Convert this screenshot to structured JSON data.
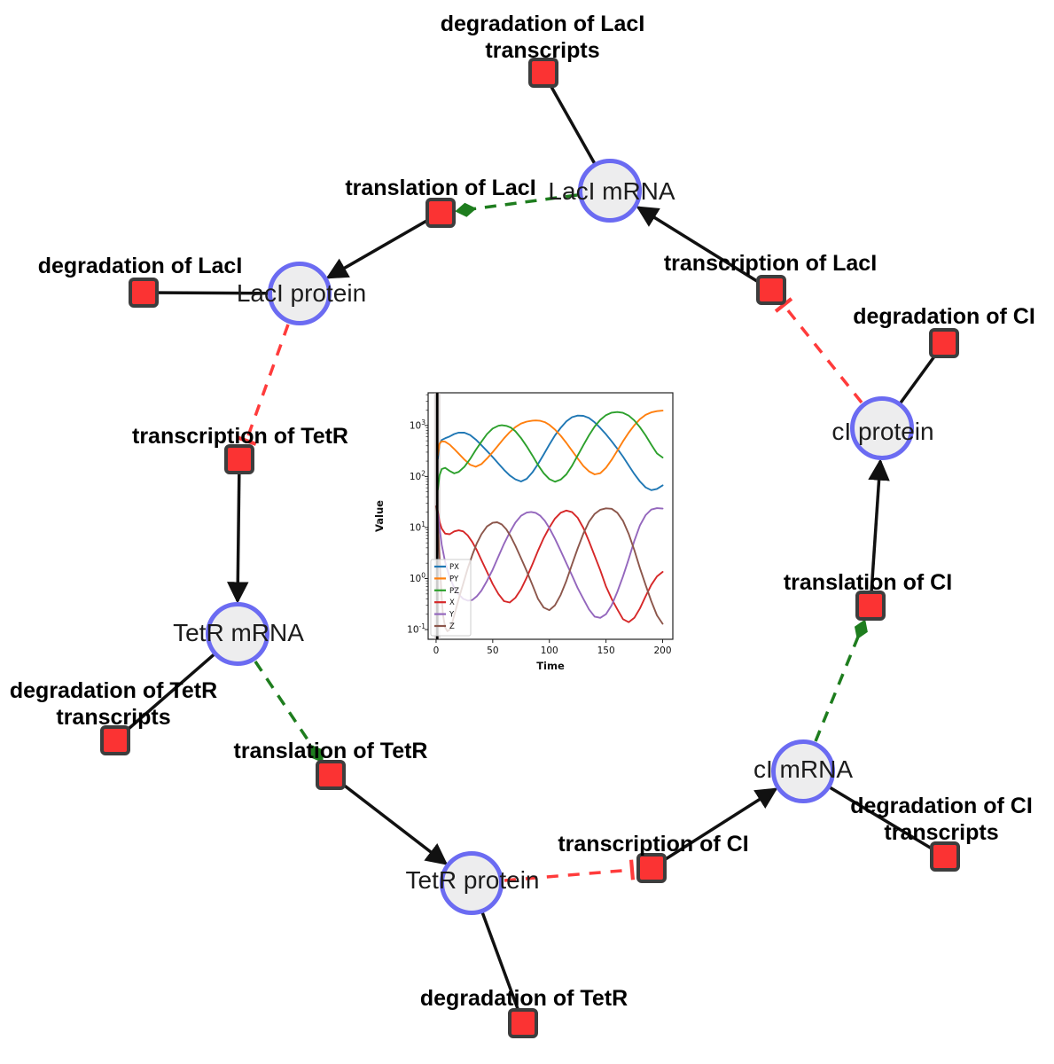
{
  "network": {
    "species": [
      {
        "label": "LacI mRNA"
      },
      {
        "label": "LacI protein"
      },
      {
        "label": "cI protein"
      },
      {
        "label": "TetR mRNA"
      },
      {
        "label": "cI mRNA"
      },
      {
        "label": "TetR protein"
      }
    ],
    "reactions": [
      {
        "lines": [
          "degradation of LacI",
          "transcripts"
        ]
      },
      {
        "lines": [
          "translation of LacI"
        ]
      },
      {
        "lines": [
          "degradation of LacI"
        ]
      },
      {
        "lines": [
          "transcription of LacI"
        ]
      },
      {
        "lines": [
          "degradation of CI"
        ]
      },
      {
        "lines": [
          "transcription of TetR"
        ]
      },
      {
        "lines": [
          "translation of CI"
        ]
      },
      {
        "lines": [
          "degradation of TetR",
          "transcripts"
        ]
      },
      {
        "lines": [
          "translation of TetR"
        ]
      },
      {
        "lines": [
          "transcription of CI"
        ]
      },
      {
        "lines": [
          "degradation of CI",
          "transcripts"
        ]
      },
      {
        "lines": [
          "degradation of TetR"
        ]
      }
    ],
    "colors": {
      "species_fill": "#ededee",
      "species_border": "#6b6bf2",
      "reaction_fill": "#fb3333",
      "reaction_border": "#3d3d3d",
      "production_edge": "#111111",
      "modifier_edge": "#1e7d1e",
      "inhibition_edge": "#ff3b3b"
    }
  },
  "chart_data": {
    "type": "line",
    "title": "",
    "xlabel": "Time",
    "ylabel": "Value",
    "x_axis": {
      "min": -7,
      "max": 209,
      "ticks": [
        0,
        50,
        100,
        150,
        200
      ]
    },
    "y_axis": {
      "scale": "log",
      "min_exp": -1.19,
      "max_exp": 3.64,
      "tick_exponents": [
        -1,
        0,
        1,
        2,
        3
      ]
    },
    "grid": false,
    "legend_position": "lower left",
    "event_line_x": 1,
    "series": [
      {
        "name": "PX",
        "color": "#1f77b4",
        "points": [
          [
            1.5,
            220
          ],
          [
            3,
            430
          ],
          [
            5,
            520
          ],
          [
            8,
            560
          ],
          [
            12,
            610
          ],
          [
            16,
            680
          ],
          [
            20,
            725
          ],
          [
            25,
            720
          ],
          [
            30,
            650
          ],
          [
            35,
            530
          ],
          [
            40,
            410
          ],
          [
            45,
            315
          ],
          [
            50,
            240
          ],
          [
            55,
            180
          ],
          [
            60,
            135
          ],
          [
            65,
            105
          ],
          [
            70,
            88
          ],
          [
            75,
            80
          ],
          [
            80,
            90
          ],
          [
            85,
            120
          ],
          [
            90,
            175
          ],
          [
            95,
            270
          ],
          [
            100,
            420
          ],
          [
            105,
            640
          ],
          [
            110,
            900
          ],
          [
            115,
            1200
          ],
          [
            120,
            1450
          ],
          [
            125,
            1560
          ],
          [
            130,
            1540
          ],
          [
            135,
            1400
          ],
          [
            140,
            1150
          ],
          [
            145,
            890
          ],
          [
            150,
            670
          ],
          [
            155,
            490
          ],
          [
            160,
            350
          ],
          [
            165,
            245
          ],
          [
            170,
            165
          ],
          [
            175,
            112
          ],
          [
            180,
            80
          ],
          [
            185,
            61
          ],
          [
            190,
            54
          ],
          [
            195,
            57
          ],
          [
            200,
            67
          ]
        ]
      },
      {
        "name": "PY",
        "color": "#ff7f0e",
        "points": [
          [
            1.5,
            260
          ],
          [
            3,
            440
          ],
          [
            5,
            490
          ],
          [
            8,
            480
          ],
          [
            12,
            420
          ],
          [
            16,
            345
          ],
          [
            20,
            280
          ],
          [
            25,
            215
          ],
          [
            30,
            170
          ],
          [
            35,
            155
          ],
          [
            40,
            175
          ],
          [
            45,
            225
          ],
          [
            50,
            300
          ],
          [
            55,
            410
          ],
          [
            60,
            560
          ],
          [
            65,
            740
          ],
          [
            70,
            930
          ],
          [
            75,
            1090
          ],
          [
            80,
            1190
          ],
          [
            85,
            1245
          ],
          [
            88,
            1255
          ],
          [
            92,
            1235
          ],
          [
            96,
            1160
          ],
          [
            100,
            1030
          ],
          [
            105,
            830
          ],
          [
            110,
            630
          ],
          [
            115,
            455
          ],
          [
            120,
            320
          ],
          [
            125,
            225
          ],
          [
            130,
            160
          ],
          [
            135,
            126
          ],
          [
            140,
            110
          ],
          [
            145,
            116
          ],
          [
            150,
            148
          ],
          [
            155,
            212
          ],
          [
            160,
            320
          ],
          [
            165,
            490
          ],
          [
            170,
            720
          ],
          [
            175,
            1010
          ],
          [
            180,
            1330
          ],
          [
            185,
            1610
          ],
          [
            190,
            1800
          ],
          [
            195,
            1910
          ],
          [
            200,
            1950
          ]
        ]
      },
      {
        "name": "PZ",
        "color": "#2ca02c",
        "points": [
          [
            1.5,
            55
          ],
          [
            3,
            105
          ],
          [
            5,
            140
          ],
          [
            8,
            148
          ],
          [
            12,
            128
          ],
          [
            16,
            115
          ],
          [
            20,
            123
          ],
          [
            25,
            155
          ],
          [
            30,
            220
          ],
          [
            35,
            330
          ],
          [
            40,
            480
          ],
          [
            45,
            680
          ],
          [
            50,
            870
          ],
          [
            55,
            985
          ],
          [
            58,
            1010
          ],
          [
            62,
            980
          ],
          [
            66,
            905
          ],
          [
            70,
            770
          ],
          [
            75,
            565
          ],
          [
            80,
            390
          ],
          [
            85,
            258
          ],
          [
            90,
            168
          ],
          [
            95,
            116
          ],
          [
            100,
            89
          ],
          [
            105,
            79
          ],
          [
            110,
            87
          ],
          [
            115,
            110
          ],
          [
            120,
            162
          ],
          [
            125,
            258
          ],
          [
            130,
            410
          ],
          [
            135,
            640
          ],
          [
            140,
            950
          ],
          [
            145,
            1290
          ],
          [
            150,
            1590
          ],
          [
            155,
            1780
          ],
          [
            160,
            1830
          ],
          [
            165,
            1765
          ],
          [
            170,
            1560
          ],
          [
            175,
            1255
          ],
          [
            180,
            925
          ],
          [
            185,
            640
          ],
          [
            190,
            420
          ],
          [
            195,
            283
          ],
          [
            200,
            235
          ]
        ]
      },
      {
        "name": "X",
        "color": "#d62728",
        "points": [
          [
            0,
            26
          ],
          [
            1,
            24
          ],
          [
            2,
            18
          ],
          [
            3,
            13
          ],
          [
            5,
            9.5
          ],
          [
            8,
            7.6
          ],
          [
            12,
            7.4
          ],
          [
            16,
            8.4
          ],
          [
            20,
            8.8
          ],
          [
            24,
            8.4
          ],
          [
            28,
            7.0
          ],
          [
            32,
            5.2
          ],
          [
            36,
            3.6
          ],
          [
            40,
            2.3
          ],
          [
            45,
            1.35
          ],
          [
            50,
            0.78
          ],
          [
            55,
            0.5
          ],
          [
            60,
            0.36
          ],
          [
            65,
            0.34
          ],
          [
            70,
            0.42
          ],
          [
            75,
            0.62
          ],
          [
            80,
            1.05
          ],
          [
            85,
            1.9
          ],
          [
            90,
            3.5
          ],
          [
            95,
            6.2
          ],
          [
            100,
            10
          ],
          [
            105,
            15
          ],
          [
            110,
            19.5
          ],
          [
            115,
            21.5
          ],
          [
            120,
            20
          ],
          [
            125,
            15.5
          ],
          [
            130,
            9.8
          ],
          [
            135,
            5.4
          ],
          [
            140,
            2.8
          ],
          [
            145,
            1.45
          ],
          [
            150,
            0.7
          ],
          [
            155,
            0.4
          ],
          [
            160,
            0.25
          ],
          [
            165,
            0.16
          ],
          [
            170,
            0.14
          ],
          [
            175,
            0.17
          ],
          [
            180,
            0.26
          ],
          [
            185,
            0.45
          ],
          [
            190,
            0.75
          ],
          [
            195,
            1.1
          ],
          [
            200,
            1.35
          ]
        ]
      },
      {
        "name": "Y",
        "color": "#9467bd",
        "points": [
          [
            0,
            26
          ],
          [
            1,
            23
          ],
          [
            2,
            16
          ],
          [
            3,
            10
          ],
          [
            5,
            4.6
          ],
          [
            8,
            2.1
          ],
          [
            12,
            1.05
          ],
          [
            16,
            0.66
          ],
          [
            20,
            0.49
          ],
          [
            24,
            0.4
          ],
          [
            28,
            0.37
          ],
          [
            32,
            0.38
          ],
          [
            36,
            0.45
          ],
          [
            40,
            0.58
          ],
          [
            45,
            0.9
          ],
          [
            50,
            1.5
          ],
          [
            55,
            2.7
          ],
          [
            60,
            4.8
          ],
          [
            65,
            8
          ],
          [
            70,
            12.5
          ],
          [
            75,
            17
          ],
          [
            80,
            19.6
          ],
          [
            84,
            20.2
          ],
          [
            88,
            19.4
          ],
          [
            92,
            17
          ],
          [
            96,
            13.5
          ],
          [
            100,
            9.8
          ],
          [
            105,
            6
          ],
          [
            110,
            3.5
          ],
          [
            115,
            2
          ],
          [
            120,
            1.15
          ],
          [
            125,
            0.65
          ],
          [
            130,
            0.4
          ],
          [
            135,
            0.25
          ],
          [
            140,
            0.18
          ],
          [
            145,
            0.17
          ],
          [
            150,
            0.2
          ],
          [
            155,
            0.3
          ],
          [
            160,
            0.55
          ],
          [
            165,
            1.1
          ],
          [
            170,
            2.4
          ],
          [
            175,
            5.5
          ],
          [
            180,
            11
          ],
          [
            185,
            17.5
          ],
          [
            190,
            22.5
          ],
          [
            195,
            24
          ],
          [
            200,
            23.5
          ]
        ]
      },
      {
        "name": "Z",
        "color": "#8c564b",
        "points": [
          [
            0,
            26
          ],
          [
            1,
            19
          ],
          [
            2,
            8
          ],
          [
            3,
            2.8
          ],
          [
            4,
            1.0
          ],
          [
            5,
            0.42
          ],
          [
            6,
            0.2
          ],
          [
            8,
            0.11
          ],
          [
            10,
            0.093
          ],
          [
            12,
            0.1
          ],
          [
            14,
            0.13
          ],
          [
            16,
            0.19
          ],
          [
            20,
            0.4
          ],
          [
            24,
            0.8
          ],
          [
            28,
            1.6
          ],
          [
            32,
            2.9
          ],
          [
            36,
            4.9
          ],
          [
            40,
            7.4
          ],
          [
            45,
            10.5
          ],
          [
            50,
            12.4
          ],
          [
            54,
            12.7
          ],
          [
            58,
            11.5
          ],
          [
            62,
            9.2
          ],
          [
            66,
            6.6
          ],
          [
            70,
            4.4
          ],
          [
            75,
            2.5
          ],
          [
            80,
            1.4
          ],
          [
            85,
            0.75
          ],
          [
            90,
            0.4
          ],
          [
            95,
            0.27
          ],
          [
            100,
            0.24
          ],
          [
            105,
            0.3
          ],
          [
            110,
            0.48
          ],
          [
            115,
            0.9
          ],
          [
            120,
            1.9
          ],
          [
            125,
            3.9
          ],
          [
            130,
            7.6
          ],
          [
            135,
            13
          ],
          [
            140,
            18.5
          ],
          [
            145,
            22.3
          ],
          [
            150,
            23.8
          ],
          [
            155,
            23.3
          ],
          [
            160,
            19.5
          ],
          [
            165,
            13.5
          ],
          [
            170,
            7.5
          ],
          [
            175,
            3.6
          ],
          [
            180,
            1.6
          ],
          [
            185,
            0.75
          ],
          [
            190,
            0.36
          ],
          [
            195,
            0.19
          ],
          [
            200,
            0.13
          ]
        ]
      }
    ]
  }
}
